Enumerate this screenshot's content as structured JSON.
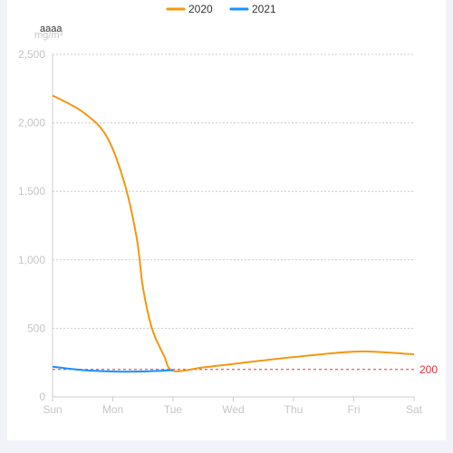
{
  "chart_data": {
    "type": "line",
    "title": "aaaa",
    "y_unit": "mg/m³",
    "categories": [
      "Sun",
      "Mon",
      "Tue",
      "Wed",
      "Thu",
      "Fri",
      "Sat"
    ],
    "ylim": [
      0,
      2500
    ],
    "y_ticks": [
      0,
      500,
      1000,
      1500,
      2000,
      2500
    ],
    "y_tick_labels": [
      "0",
      "500",
      "1,000",
      "1,500",
      "2,000",
      "2,500"
    ],
    "grid": true,
    "legend_position": "top-center",
    "series": [
      {
        "name": "2020",
        "color": "#f5960f",
        "points": [
          {
            "x": 0,
            "y": 2200
          },
          {
            "x": 0.5,
            "y": 2080
          },
          {
            "x": 0.9,
            "y": 1900
          },
          {
            "x": 1.2,
            "y": 1550
          },
          {
            "x": 1.4,
            "y": 1150
          },
          {
            "x": 1.5,
            "y": 800
          },
          {
            "x": 1.65,
            "y": 500
          },
          {
            "x": 1.85,
            "y": 300
          },
          {
            "x": 2,
            "y": 190
          },
          {
            "x": 2.5,
            "y": 215
          },
          {
            "x": 3,
            "y": 240
          },
          {
            "x": 4,
            "y": 290
          },
          {
            "x": 5,
            "y": 330
          },
          {
            "x": 5.5,
            "y": 325
          },
          {
            "x": 6,
            "y": 310
          }
        ]
      },
      {
        "name": "2021",
        "color": "#1890ff",
        "points": [
          {
            "x": 0,
            "y": 220
          },
          {
            "x": 0.5,
            "y": 195
          },
          {
            "x": 1,
            "y": 185
          },
          {
            "x": 1.5,
            "y": 185
          },
          {
            "x": 2,
            "y": 195
          }
        ]
      }
    ],
    "reference_line": {
      "value": 200,
      "label": "200",
      "color": "#e0303a"
    }
  }
}
